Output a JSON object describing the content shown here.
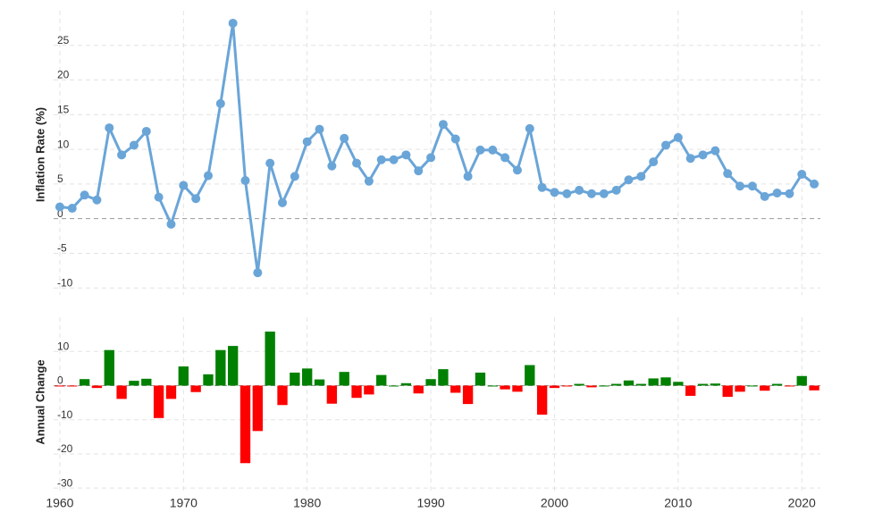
{
  "chart_data": [
    {
      "type": "line",
      "y_label": "Inflation Rate (%)",
      "color": "#6aa5d8",
      "grid": true,
      "x": [
        1960,
        1961,
        1962,
        1963,
        1964,
        1965,
        1966,
        1967,
        1968,
        1969,
        1970,
        1971,
        1972,
        1973,
        1974,
        1975,
        1976,
        1977,
        1978,
        1979,
        1980,
        1981,
        1982,
        1983,
        1984,
        1985,
        1986,
        1987,
        1988,
        1989,
        1990,
        1991,
        1992,
        1993,
        1994,
        1995,
        1996,
        1997,
        1998,
        1999,
        2000,
        2001,
        2002,
        2003,
        2004,
        2005,
        2006,
        2007,
        2008,
        2009,
        2010,
        2011,
        2012,
        2013,
        2014,
        2015,
        2016,
        2017,
        2018,
        2019,
        2020,
        2021
      ],
      "values": [
        1.7,
        1.5,
        3.4,
        2.7,
        13.1,
        9.2,
        10.6,
        12.6,
        3.1,
        -0.8,
        4.8,
        2.9,
        6.2,
        16.6,
        28.2,
        5.5,
        -7.8,
        8.0,
        2.3,
        6.1,
        11.1,
        12.9,
        7.6,
        11.6,
        8.0,
        5.4,
        8.5,
        8.5,
        9.2,
        6.9,
        8.8,
        13.6,
        11.5,
        6.1,
        9.9,
        9.9,
        8.8,
        7.0,
        13.0,
        4.5,
        3.8,
        3.6,
        4.1,
        3.6,
        3.6,
        4.1,
        5.6,
        6.1,
        8.2,
        10.6,
        11.7,
        8.7,
        9.2,
        9.8,
        6.5,
        4.7,
        4.7,
        3.2,
        3.7,
        3.6,
        6.4,
        5.0
      ],
      "xlim": [
        1959.5,
        2021.5
      ],
      "xticks": [
        1960,
        1970,
        1980,
        1990,
        2000,
        2010,
        2020
      ],
      "ylim": [
        -11,
        30
      ],
      "yticks": [
        -10,
        -5,
        0,
        5,
        10,
        15,
        20,
        25
      ]
    },
    {
      "type": "bar",
      "y_label": "Annual Change",
      "positive_color": "#008000",
      "negative_color": "#ff0000",
      "grid": true,
      "x": [
        1960,
        1961,
        1962,
        1963,
        1964,
        1965,
        1966,
        1967,
        1968,
        1969,
        1970,
        1971,
        1972,
        1973,
        1974,
        1975,
        1976,
        1977,
        1978,
        1979,
        1980,
        1981,
        1982,
        1983,
        1984,
        1985,
        1986,
        1987,
        1988,
        1989,
        1990,
        1991,
        1992,
        1993,
        1994,
        1995,
        1996,
        1997,
        1998,
        1999,
        2000,
        2001,
        2002,
        2003,
        2004,
        2005,
        2006,
        2007,
        2008,
        2009,
        2010,
        2011,
        2012,
        2013,
        2014,
        2015,
        2016,
        2017,
        2018,
        2019,
        2020,
        2021
      ],
      "values": [
        -0.2,
        -0.2,
        1.9,
        -0.7,
        10.4,
        -3.9,
        1.4,
        2.0,
        -9.5,
        -3.9,
        5.6,
        -1.9,
        3.3,
        10.4,
        11.6,
        -22.7,
        -13.3,
        15.8,
        -5.7,
        3.8,
        5.0,
        1.8,
        -5.3,
        4.0,
        -3.6,
        -2.6,
        3.1,
        0.0,
        0.7,
        -2.3,
        1.9,
        4.8,
        -2.1,
        -5.4,
        3.8,
        0.0,
        -1.1,
        -1.8,
        6.0,
        -8.5,
        -0.7,
        -0.2,
        0.5,
        -0.5,
        0.0,
        0.5,
        1.5,
        0.5,
        2.1,
        2.4,
        1.1,
        -3.0,
        0.5,
        0.6,
        -3.3,
        -1.8,
        0.0,
        -1.5,
        0.5,
        -0.1,
        2.8,
        -1.4
      ],
      "xlim": [
        1959.5,
        2021.5
      ],
      "xticks": [
        1960,
        1970,
        1980,
        1990,
        2000,
        2010,
        2020
      ],
      "ylim": [
        -31,
        20
      ],
      "yticks": [
        -30,
        -20,
        -10,
        0,
        10
      ]
    }
  ]
}
